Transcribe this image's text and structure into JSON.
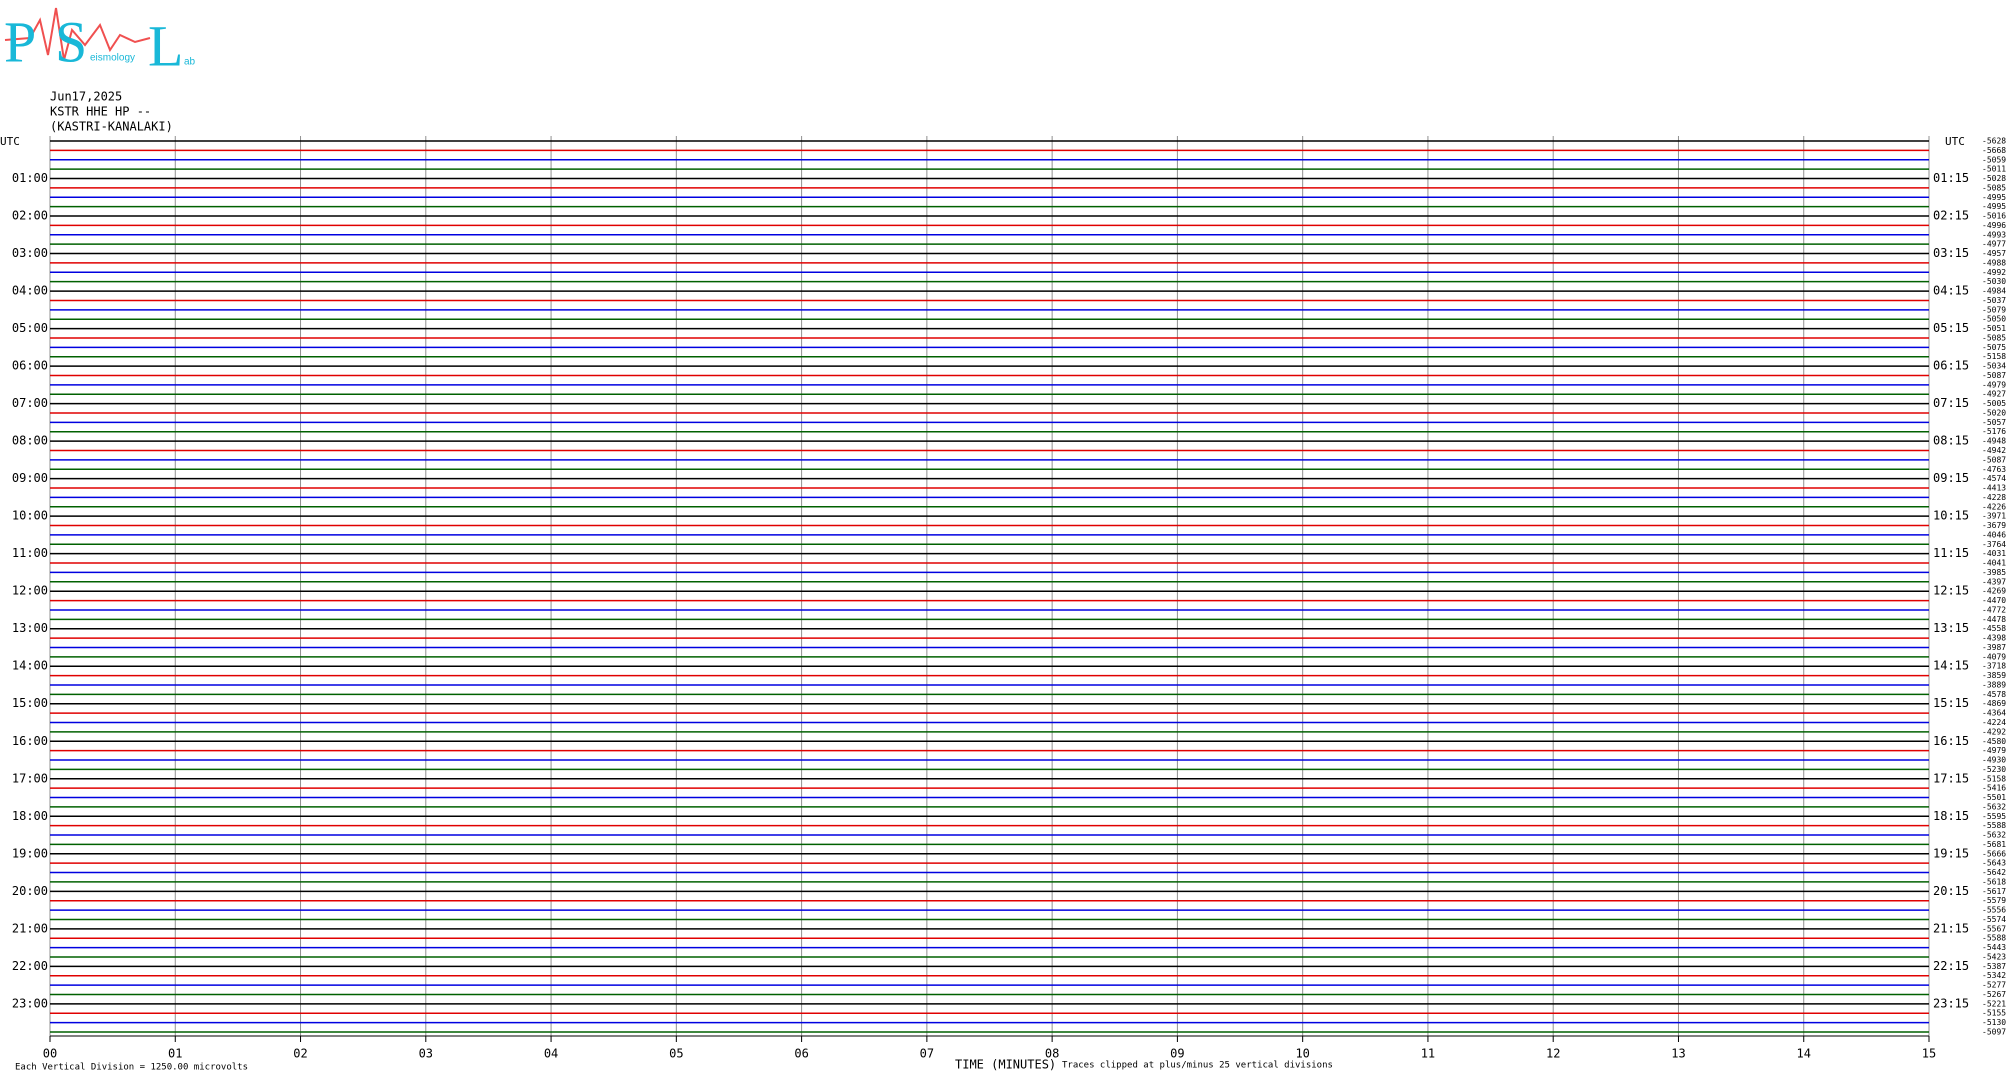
{
  "chart_data": {
    "type": "helicorder",
    "logo": {
      "letters": [
        "P",
        "S",
        "L"
      ],
      "words": [
        "eismology",
        "ab"
      ]
    },
    "header": [
      "Jun17,2025",
      "KSTR HHE HP --",
      "(KASTRI-KANALAKI)"
    ],
    "left_corner": "UTC",
    "right_corner": "UTC",
    "left_labels": [
      "01:00",
      "02:00",
      "03:00",
      "04:00",
      "05:00",
      "06:00",
      "07:00",
      "08:00",
      "09:00",
      "10:00",
      "11:00",
      "12:00",
      "13:00",
      "14:00",
      "15:00",
      "16:00",
      "17:00",
      "18:00",
      "19:00",
      "20:00",
      "21:00",
      "22:00",
      "23:00"
    ],
    "right_labels": [
      "01:15",
      "02:15",
      "03:15",
      "04:15",
      "05:15",
      "06:15",
      "07:15",
      "08:15",
      "09:15",
      "10:15",
      "11:15",
      "12:15",
      "13:15",
      "14:15",
      "15:15",
      "16:15",
      "17:15",
      "18:15",
      "19:15",
      "20:15",
      "21:15",
      "22:15",
      "23:15"
    ],
    "trace_colors": [
      "#000000",
      "#e00000",
      "#0000e0",
      "#006000"
    ],
    "trace_offsets": [
      -5628,
      -5668,
      -5059,
      -5011,
      -5028,
      -5085,
      -4995,
      -4995,
      -5016,
      -4996,
      -4993,
      -4977,
      -4957,
      -4988,
      -4992,
      -5030,
      -4984,
      -5037,
      -5079,
      -5050,
      -5051,
      -5085,
      -5075,
      -5158,
      -5034,
      -5087,
      -4979,
      -4927,
      -5005,
      -5020,
      -5057,
      -5176,
      -4948,
      -4942,
      -5087,
      -4763,
      -4574,
      -4413,
      -4228,
      -4226,
      -3971,
      -3679,
      -4046,
      -3764,
      -4031,
      -4041,
      -3985,
      -4397,
      -4269,
      -4470,
      -4772,
      -4478,
      -4558,
      -4398,
      -3987,
      -4079,
      -3718,
      -3859,
      -3889,
      -4578,
      -4869,
      -4364,
      -4224,
      -4292,
      -4580,
      -4979,
      -4930,
      -5230,
      -5158,
      -5416,
      -5501,
      -5632,
      -5595,
      -5588,
      -5632,
      -5681,
      -5666,
      -5643,
      -5642,
      -5618,
      -5617,
      -5579,
      -5556,
      -5574,
      -5567,
      -5588,
      -5443,
      -5423,
      -5387,
      -5342,
      -5277,
      -5267,
      -5221,
      -5155,
      -5130,
      -5097
    ],
    "xlabel": "TIME (MINUTES)",
    "xlim": [
      0,
      15
    ],
    "xticks": [
      {
        "value": 0,
        "label": "00"
      },
      {
        "value": 1,
        "label": "01"
      },
      {
        "value": 2,
        "label": "02"
      },
      {
        "value": 3,
        "label": "03"
      },
      {
        "value": 4,
        "label": "04"
      },
      {
        "value": 5,
        "label": "05"
      },
      {
        "value": 6,
        "label": "06"
      },
      {
        "value": 7,
        "label": "07"
      },
      {
        "value": 8,
        "label": "08"
      },
      {
        "value": 9,
        "label": "09"
      },
      {
        "value": 10,
        "label": "10"
      },
      {
        "value": 11,
        "label": "11"
      },
      {
        "value": 12,
        "label": "12"
      },
      {
        "value": 13,
        "label": "13"
      },
      {
        "value": 14,
        "label": "14"
      },
      {
        "value": 15,
        "label": "15"
      }
    ],
    "grid": true,
    "footer_left": "Each Vertical Division = 1250.00 microvolts",
    "footer_right": "Traces clipped at plus/minus 25 vertical divisions"
  }
}
